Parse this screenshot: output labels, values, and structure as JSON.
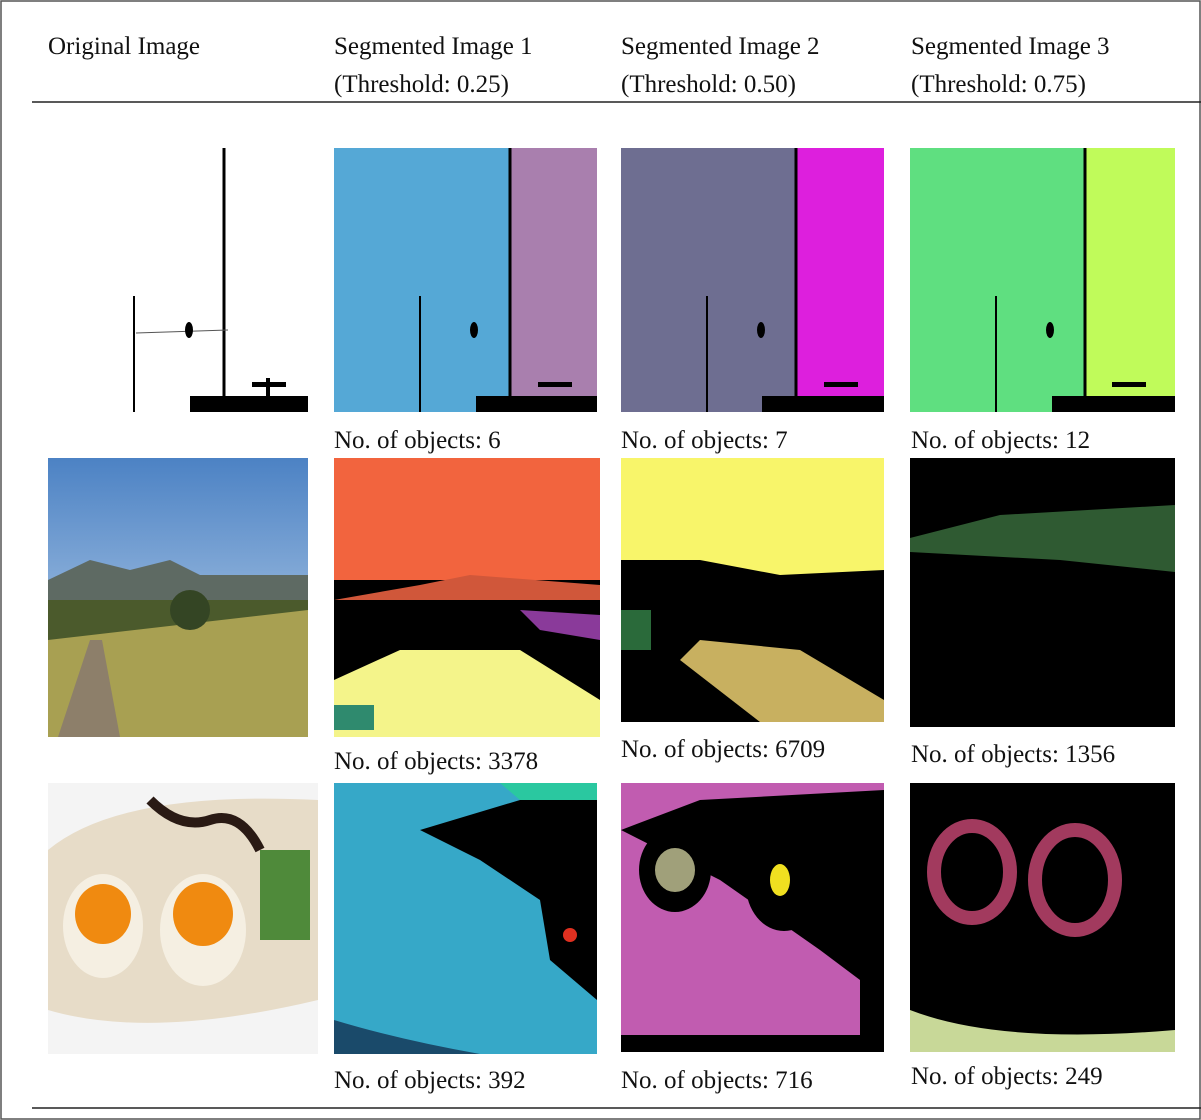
{
  "header": {
    "columns": [
      {
        "lines": [
          "Original Image"
        ]
      },
      {
        "lines": [
          "Segmented Image 1",
          "(Threshold: 0.25)"
        ]
      },
      {
        "lines": [
          "Segmented Image 2",
          "(Threshold: 0.50)"
        ]
      },
      {
        "lines": [
          "Segmented Image 3",
          "(Threshold: 0.75)"
        ]
      }
    ]
  },
  "rows": [
    {
      "captions": [
        "No. of objects: 6",
        "No. of objects: 7",
        "No. of objects: 12"
      ]
    },
    {
      "captions": [
        "No. of objects: 3378",
        "No. of objects: 6709",
        "No. of objects: 1356"
      ]
    },
    {
      "captions": [
        "No. of objects: 392",
        "No. of objects: 716",
        "No. of objects: 249"
      ]
    }
  ]
}
